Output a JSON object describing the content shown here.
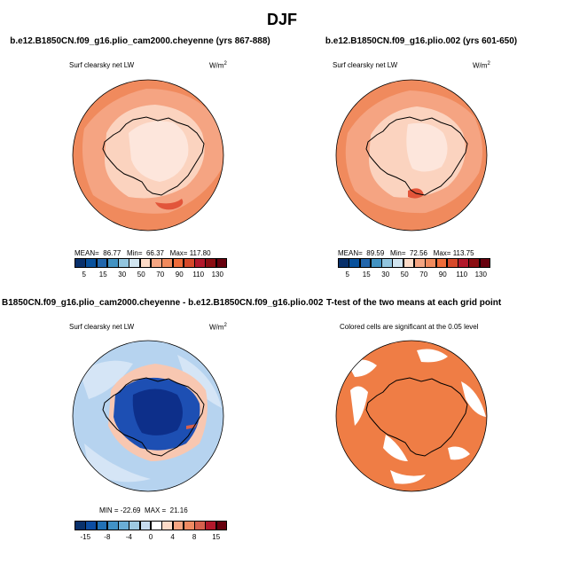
{
  "figure": {
    "title": "DJF"
  },
  "panels": [
    {
      "title": "b.e12.B1850CN.f09_g16.plio_cam2000.cheyenne (yrs 867-888)",
      "variable": "Surf clearsky net LW",
      "units": "W/m",
      "units_exp": "2",
      "stats": {
        "mean_label": "MEAN=",
        "mean": "86.77",
        "min_label": "Min=",
        "min": "66.37",
        "max_label": "Max=",
        "max": "117.80"
      }
    },
    {
      "title": "b.e12.B1850CN.f09_g16.plio.002 (yrs 601-650)",
      "variable": "Surf clearsky net LW",
      "units": "W/m",
      "units_exp": "2",
      "stats": {
        "mean_label": "MEAN=",
        "mean": "89.59",
        "min_label": "Min=",
        "min": "72.56",
        "max_label": "Max=",
        "max": "113.75"
      }
    },
    {
      "title": "B1850CN.f09_g16.plio_cam2000.cheyenne - b.e12.B1850CN.f09_g16.plio.002",
      "variable": "Surf clearsky net LW",
      "units": "W/m",
      "units_exp": "2",
      "stats": {
        "min_label": "MIN =",
        "min": "-22.69",
        "max_label": "MAX =",
        "max": "21.16"
      }
    },
    {
      "title": "T-test of the two means at each grid point",
      "note": "Colored cells are significant at the 0.05 level"
    }
  ],
  "colorbars": {
    "absolute": {
      "colors": [
        "#08306b",
        "#08519c",
        "#2166ac",
        "#4393c3",
        "#92c5de",
        "#d1e5f0",
        "#fddbc7",
        "#f4a582",
        "#f08a5d",
        "#ef6c3a",
        "#d6492a",
        "#b2182b",
        "#8b0d12",
        "#67000d"
      ],
      "ticks": [
        "5",
        "15",
        "30",
        "50",
        "70",
        "90",
        "110",
        "130"
      ]
    },
    "difference": {
      "colors": [
        "#08306b",
        "#0c4da2",
        "#2171b5",
        "#4292c6",
        "#6baed6",
        "#9ecae1",
        "#c6dbef",
        "#ffffff",
        "#fddbc7",
        "#f4a582",
        "#ef8a62",
        "#d6604d",
        "#b2182b",
        "#67000d"
      ],
      "ticks": [
        "-15",
        "-8",
        "-4",
        "0",
        "4",
        "8",
        "15"
      ]
    }
  },
  "map_colors": {
    "ocean_orange": "#f08a5d",
    "ocean_light": "#f5a482",
    "antarctic_light": "#fbd3bf",
    "antarctic_pale": "#fde6dc",
    "ice_red": "#e2553a",
    "diff_bg": "#b6d3ef",
    "diff_mid": "#d5e5f6",
    "diff_dark": "#1d4fb3",
    "diff_darker": "#0d2f8a",
    "diff_warm": "#f8c7b1",
    "ttest_orange": "#ef7d45"
  }
}
